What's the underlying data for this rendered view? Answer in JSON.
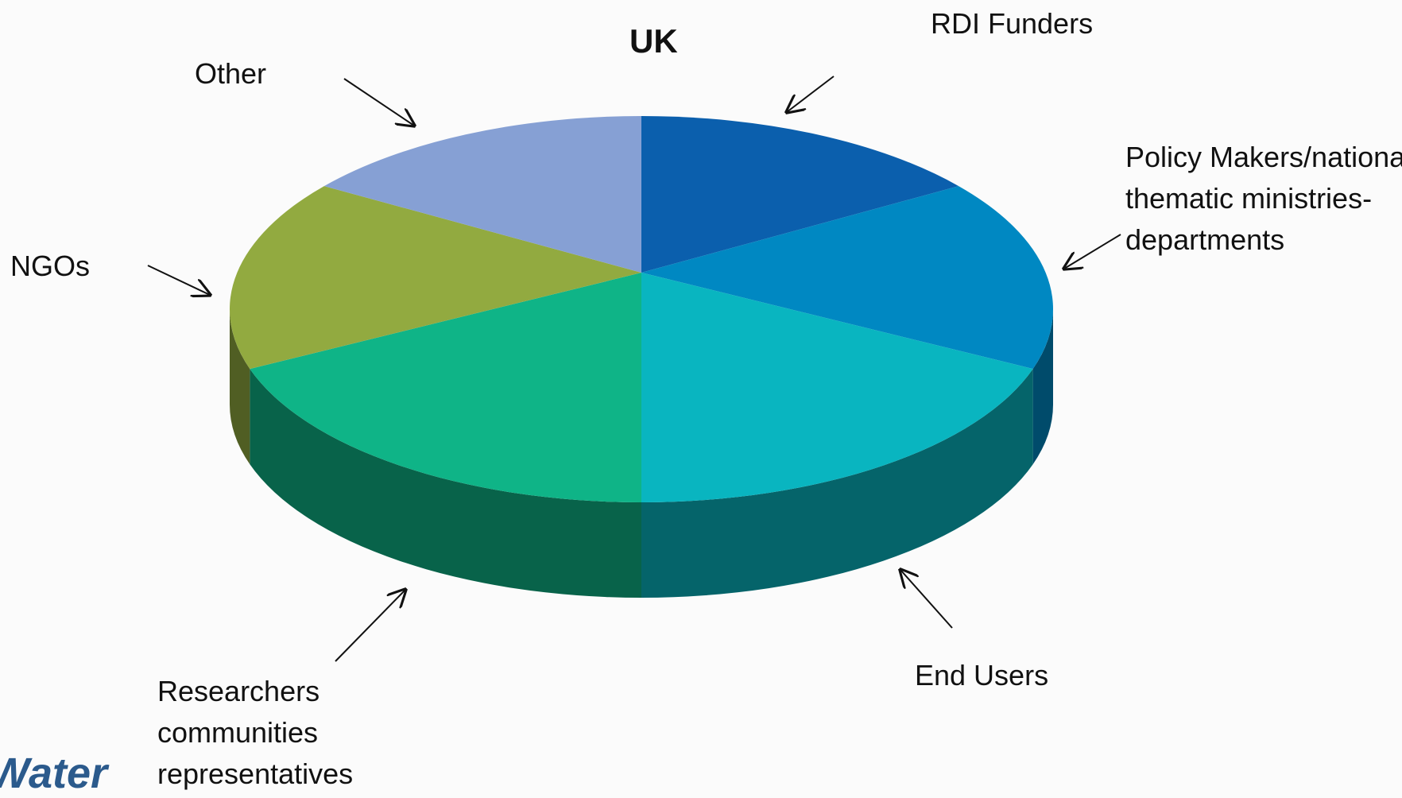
{
  "chart_data": {
    "type": "pie3d",
    "title": "UK",
    "categories": [
      "RDI Funders",
      "Policy Makers/national thematic ministries-departments",
      "End Users",
      "Researchers communities representatives",
      "NGOs",
      "Other"
    ],
    "values": [
      14,
      16,
      20,
      20,
      16,
      14
    ],
    "colors": [
      "#0b5fad",
      "#0088c2",
      "#09b5c0",
      "#0fb487",
      "#92aa40",
      "#86a0d4"
    ]
  },
  "logo_text": "Water"
}
